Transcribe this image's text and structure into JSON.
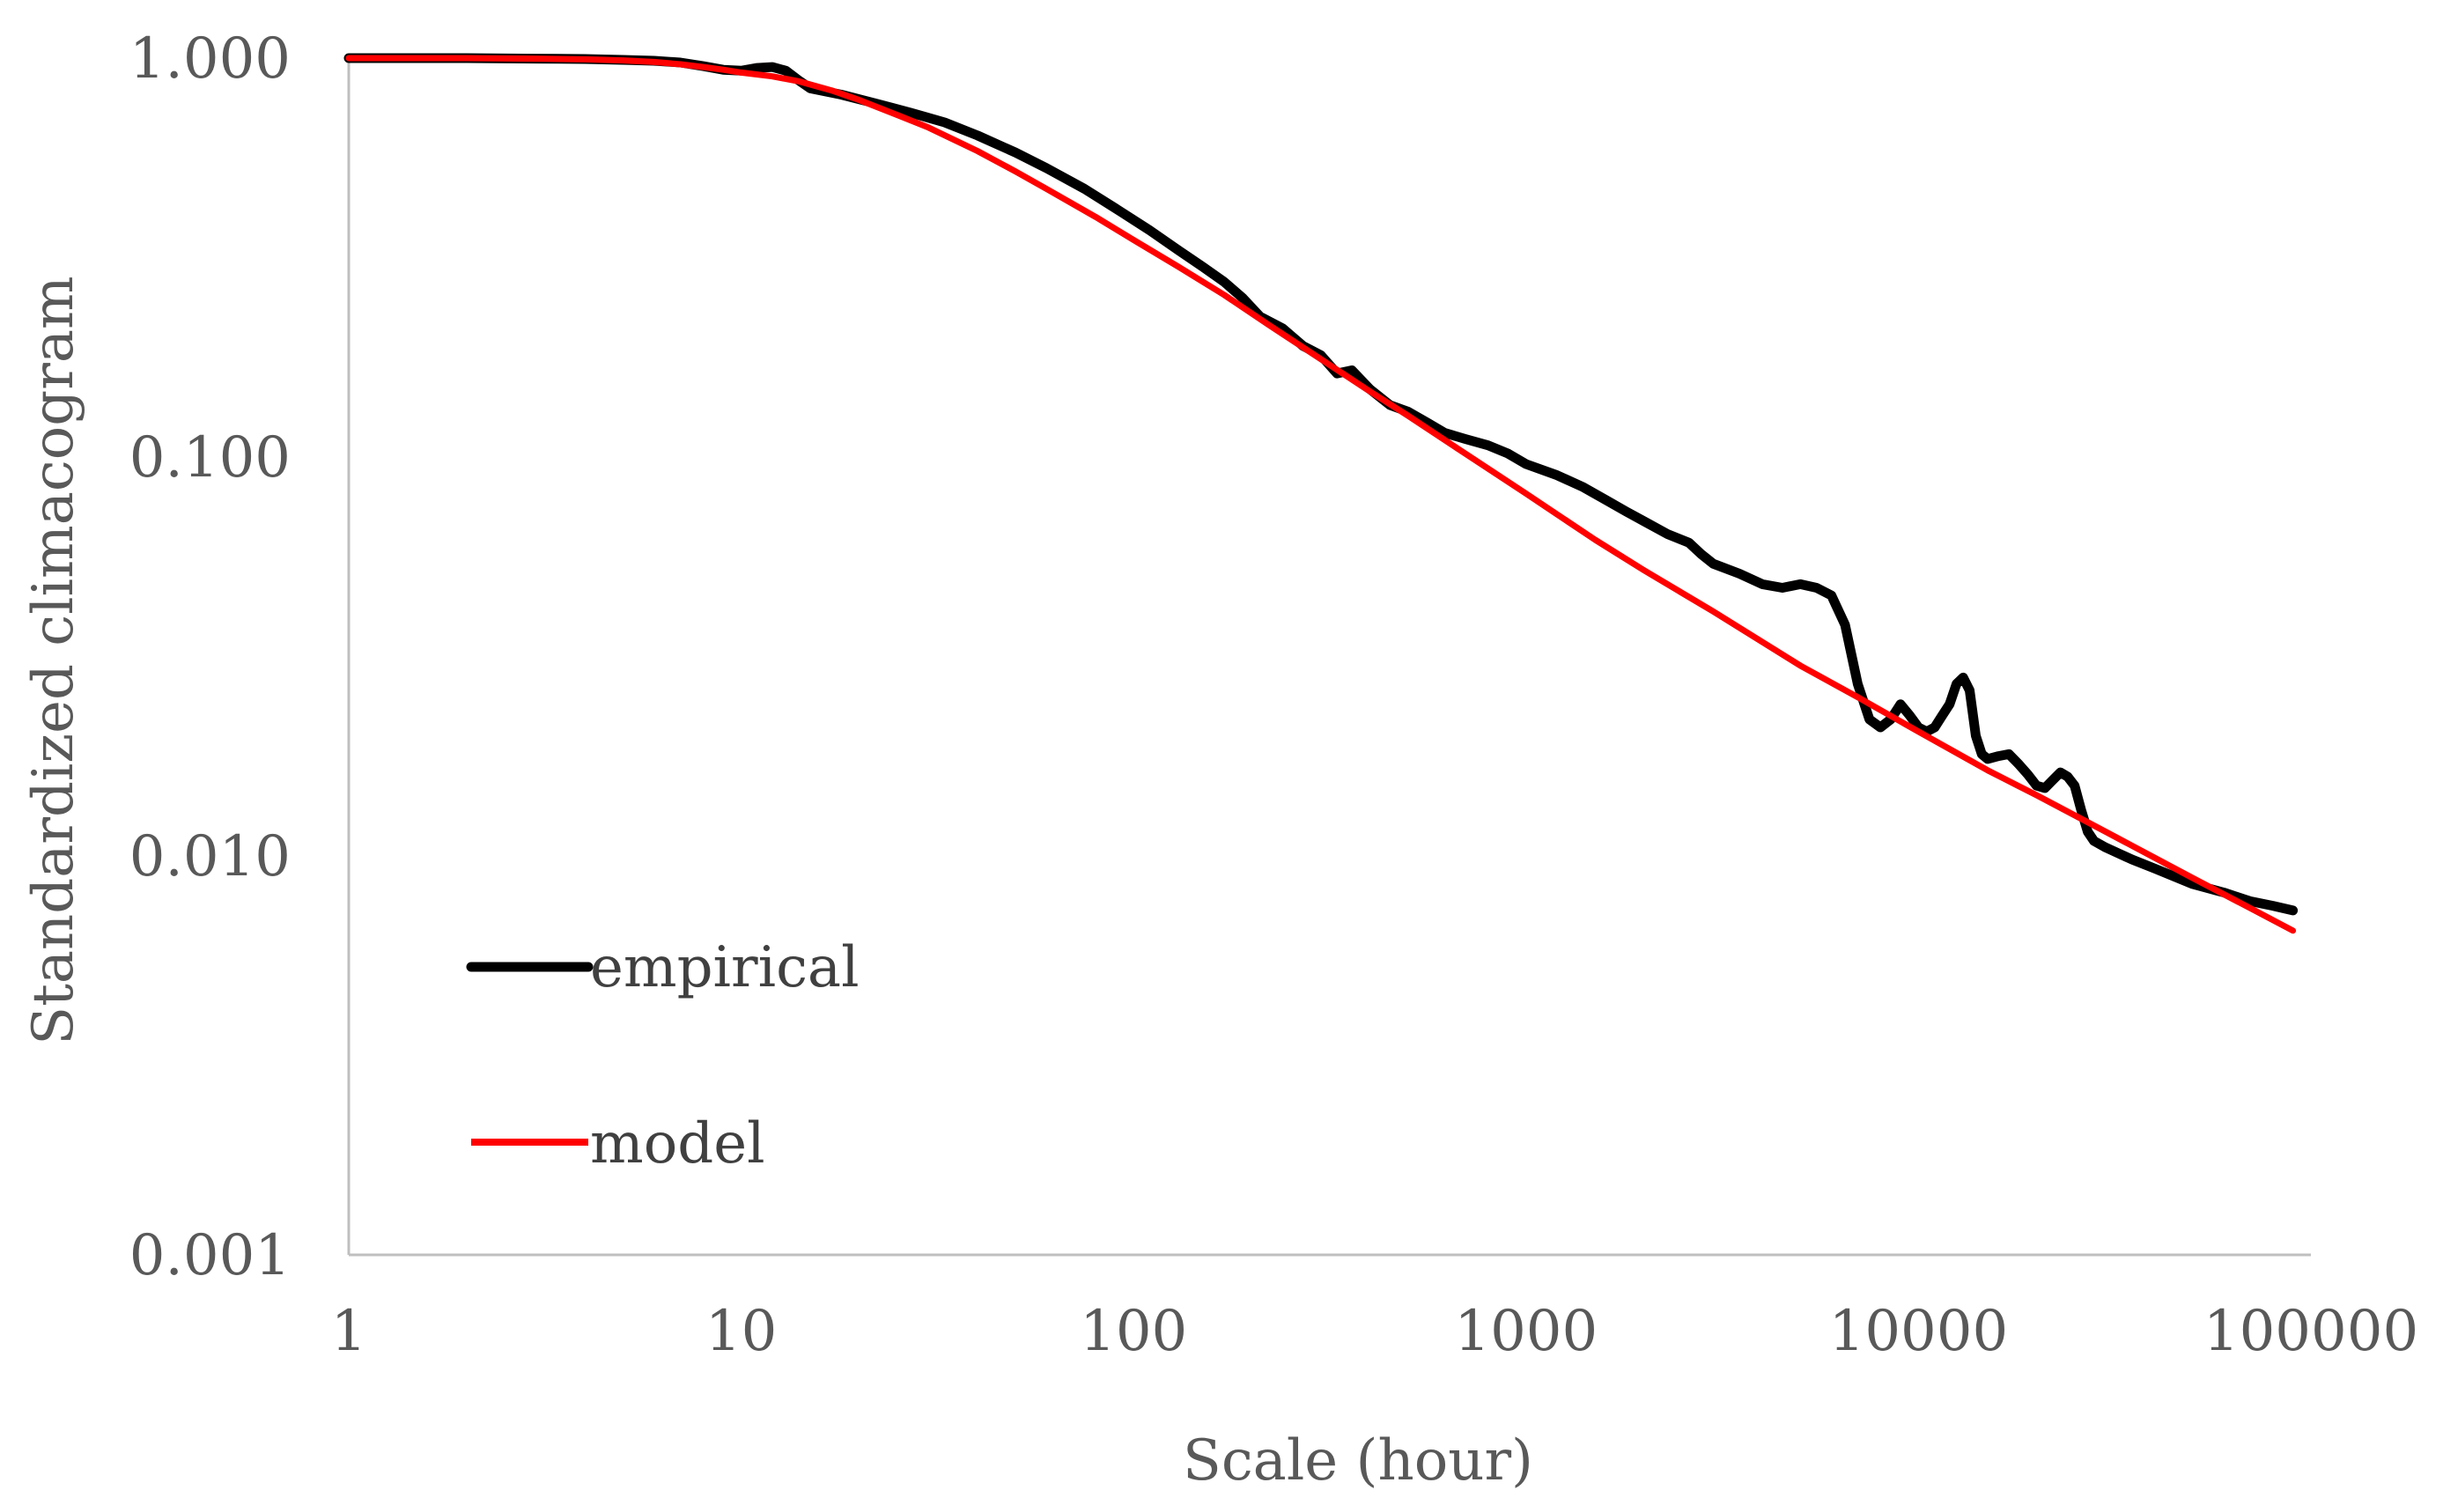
{
  "chart_data": {
    "type": "line",
    "title": "",
    "xlabel": "Scale (hour)",
    "ylabel": "Standardized climacogram",
    "xscale": "log",
    "yscale": "log",
    "xlim": [
      1,
      100000
    ],
    "ylim": [
      0.001,
      1.0
    ],
    "grid": false,
    "legend_position": "bottom-left",
    "x_ticks": [
      1,
      10,
      100,
      1000,
      10000,
      100000
    ],
    "x_tick_labels": [
      "1",
      "10",
      "100",
      "1000",
      "10000",
      "100000"
    ],
    "y_ticks": [
      0.001,
      0.01,
      0.1,
      1.0
    ],
    "y_tick_labels": [
      "0.001",
      "0.010",
      "0.100",
      "1.000"
    ],
    "series": [
      {
        "name": "empirical",
        "color": "#000000",
        "x": [
          1,
          2,
          3,
          4,
          5,
          6,
          7,
          8,
          9,
          10,
          11,
          12,
          13,
          14,
          15,
          18,
          22,
          27,
          33,
          40,
          50,
          60,
          75,
          90,
          110,
          130,
          150,
          170,
          190,
          210,
          240,
          270,
          300,
          330,
          360,
          400,
          450,
          500,
          560,
          620,
          700,
          800,
          900,
          1000,
          1200,
          1400,
          1600,
          1800,
          2000,
          2300,
          2600,
          2800,
          3000,
          3500,
          4000,
          4500,
          5000,
          5500,
          6000,
          6500,
          7000,
          7500,
          8000,
          8500,
          9000,
          9500,
          10000,
          10500,
          11000,
          11500,
          12000,
          12500,
          13000,
          13500,
          14000,
          14500,
          15000,
          16000,
          17000,
          18000,
          19000,
          20000,
          21000,
          22000,
          23000,
          24000,
          25000,
          26000,
          27000,
          28000,
          30000,
          35000,
          40000,
          50000,
          60000,
          70000,
          80000,
          90000
        ],
        "values": [
          1.0,
          1.0,
          0.997,
          0.995,
          0.99,
          0.985,
          0.975,
          0.955,
          0.935,
          0.93,
          0.945,
          0.95,
          0.93,
          0.88,
          0.84,
          0.81,
          0.77,
          0.73,
          0.69,
          0.64,
          0.58,
          0.53,
          0.47,
          0.42,
          0.37,
          0.33,
          0.3,
          0.275,
          0.25,
          0.225,
          0.21,
          0.19,
          0.18,
          0.162,
          0.165,
          0.148,
          0.135,
          0.13,
          0.122,
          0.115,
          0.111,
          0.107,
          0.102,
          0.096,
          0.09,
          0.084,
          0.078,
          0.073,
          0.069,
          0.064,
          0.061,
          0.057,
          0.054,
          0.051,
          0.048,
          0.047,
          0.048,
          0.047,
          0.045,
          0.038,
          0.027,
          0.022,
          0.021,
          0.022,
          0.024,
          0.0225,
          0.021,
          0.0205,
          0.021,
          0.0225,
          0.024,
          0.027,
          0.028,
          0.026,
          0.02,
          0.018,
          0.0175,
          0.0178,
          0.018,
          0.017,
          0.016,
          0.015,
          0.0148,
          0.0155,
          0.0162,
          0.0158,
          0.015,
          0.013,
          0.0115,
          0.0109,
          0.0105,
          0.0098,
          0.0093,
          0.0085,
          0.0081,
          0.0077,
          0.0075,
          0.0073
        ]
      },
      {
        "name": "model",
        "color": "#FF0000",
        "x": [
          1,
          2,
          3,
          4,
          5,
          6,
          7,
          8,
          9,
          10,
          12,
          14,
          17,
          20,
          25,
          30,
          40,
          50,
          60,
          80,
          100,
          130,
          170,
          220,
          300,
          400,
          500,
          700,
          1000,
          1500,
          2000,
          3000,
          5000,
          7000,
          10000,
          15000,
          20000,
          30000,
          50000,
          70000,
          90000
        ],
        "values": [
          1.0,
          1.0,
          0.997,
          0.993,
          0.987,
          0.978,
          0.965,
          0.95,
          0.935,
          0.92,
          0.9,
          0.875,
          0.83,
          0.785,
          0.72,
          0.67,
          0.585,
          0.52,
          0.47,
          0.4,
          0.35,
          0.3,
          0.255,
          0.215,
          0.176,
          0.146,
          0.127,
          0.102,
          0.081,
          0.062,
          0.052,
          0.041,
          0.03,
          0.025,
          0.0205,
          0.0164,
          0.0142,
          0.0115,
          0.0088,
          0.0074,
          0.0065
        ]
      }
    ]
  }
}
